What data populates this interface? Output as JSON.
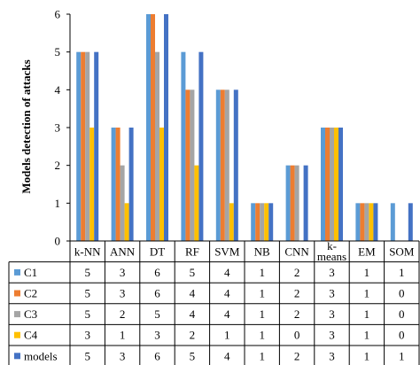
{
  "chart_data": {
    "type": "bar",
    "title": "",
    "xlabel": "",
    "ylabel": "Models detection of attacks",
    "ylim": [
      0,
      6
    ],
    "yticks": [
      0,
      1,
      2,
      3,
      4,
      5,
      6
    ],
    "grid": false,
    "legend": "data table below chart",
    "categories": [
      "k-NN",
      "ANN",
      "DT",
      "RF",
      "SVM",
      "NB",
      "CNN",
      "k-means",
      "EM",
      "SOM"
    ],
    "series": [
      {
        "name": "C1",
        "color": "#5B9BD5",
        "values": [
          5,
          3,
          6,
          5,
          4,
          1,
          2,
          3,
          1,
          1
        ]
      },
      {
        "name": "C2",
        "color": "#ED7D31",
        "values": [
          5,
          3,
          6,
          4,
          4,
          1,
          2,
          3,
          1,
          0
        ]
      },
      {
        "name": "C3",
        "color": "#A5A5A5",
        "values": [
          5,
          2,
          5,
          4,
          4,
          1,
          2,
          3,
          1,
          0
        ]
      },
      {
        "name": "C4",
        "color": "#FFC000",
        "values": [
          3,
          1,
          3,
          2,
          1,
          1,
          0,
          3,
          1,
          0
        ]
      },
      {
        "name": "models",
        "color": "#4472C4",
        "values": [
          5,
          3,
          6,
          5,
          4,
          1,
          2,
          3,
          1,
          1
        ]
      }
    ]
  }
}
